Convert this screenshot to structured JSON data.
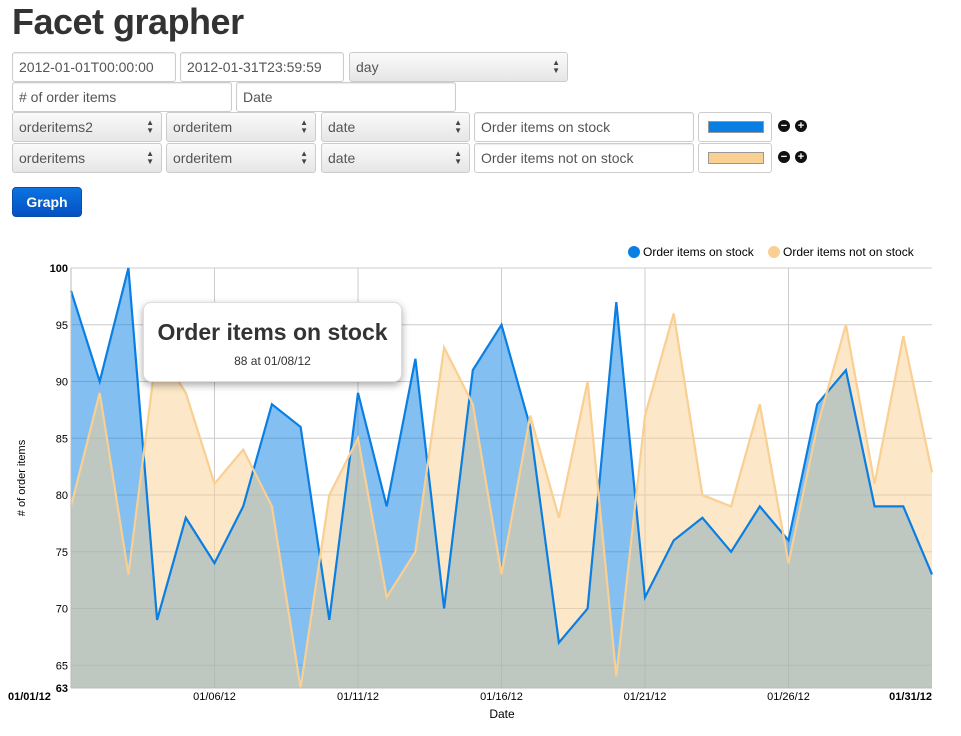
{
  "page": {
    "title": "Facet grapher"
  },
  "form": {
    "start_date": "2012-01-01T00:00:00",
    "end_date": "2012-01-31T23:59:59",
    "interval": "day",
    "y_axis_label": "# of order items",
    "x_axis_label": "Date",
    "rows": [
      {
        "index": "orderitems2",
        "type": "orderitem",
        "field": "date",
        "label": "Order items on stock",
        "color": "#0a7fe3"
      },
      {
        "index": "orderitems",
        "type": "orderitem",
        "field": "date",
        "label": "Order items not on stock",
        "color": "#f9cf92"
      }
    ],
    "graph_button": "Graph",
    "icons": {
      "remove": "minus-circle-icon",
      "add": "plus-circle-icon",
      "select": "select-arrows-icon"
    }
  },
  "chart_data": {
    "type": "area",
    "xlabel": "Date",
    "ylabel": "# of order items",
    "ylim": [
      63,
      100
    ],
    "y_ticks": [
      "100",
      "95",
      "90",
      "85",
      "80",
      "75",
      "70",
      "65",
      "63"
    ],
    "x_ticks": [
      "01/01/12",
      "01/06/12",
      "01/11/12",
      "01/16/12",
      "01/21/12",
      "01/26/12",
      "01/31/12"
    ],
    "x": [
      "01/01/12",
      "01/02/12",
      "01/03/12",
      "01/04/12",
      "01/05/12",
      "01/06/12",
      "01/07/12",
      "01/08/12",
      "01/09/12",
      "01/10/12",
      "01/11/12",
      "01/12/12",
      "01/13/12",
      "01/14/12",
      "01/15/12",
      "01/16/12",
      "01/17/12",
      "01/18/12",
      "01/19/12",
      "01/20/12",
      "01/21/12",
      "01/22/12",
      "01/23/12",
      "01/24/12",
      "01/25/12",
      "01/26/12",
      "01/27/12",
      "01/28/12",
      "01/29/12",
      "01/30/12",
      "01/31/12"
    ],
    "grid": true,
    "legend_position": "top-right",
    "series": [
      {
        "name": "Order items on stock",
        "color": "#0a7fe3",
        "values": [
          98,
          90,
          100,
          69,
          78,
          74,
          79,
          88,
          86,
          69,
          89,
          79,
          92,
          70,
          91,
          95,
          86,
          67,
          70,
          97,
          71,
          76,
          78,
          75,
          79,
          76,
          88,
          91,
          79,
          79,
          73
        ]
      },
      {
        "name": "Order items not on stock",
        "color": "#f9cf92",
        "values": [
          79,
          89,
          73,
          93,
          89,
          81,
          84,
          79,
          63,
          80,
          85,
          71,
          75,
          93,
          88,
          73,
          87,
          78,
          90,
          64,
          87,
          96,
          80,
          79,
          88,
          74,
          86,
          95,
          81,
          94,
          82
        ]
      }
    ],
    "tooltip": {
      "title": "Order items on stock",
      "text": "88 at 01/08/12"
    }
  }
}
